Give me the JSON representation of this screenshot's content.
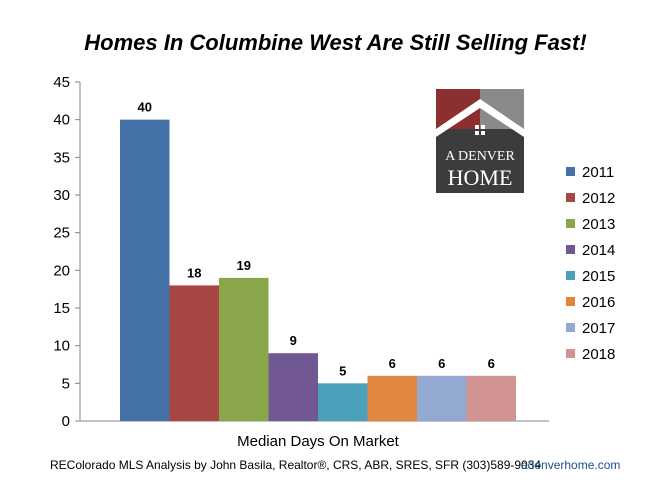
{
  "chart_data": {
    "type": "bar",
    "title": "Homes In Columbine West Are Still Selling Fast!",
    "xlabel": "Median Days On Market",
    "ylabel": "",
    "ylim": [
      0,
      45
    ],
    "yticks": [
      0,
      5,
      10,
      15,
      20,
      25,
      30,
      35,
      40,
      45
    ],
    "categories": [
      "Median Days On Market"
    ],
    "series": [
      {
        "name": "2011",
        "values": [
          40
        ],
        "color": "#4472a8"
      },
      {
        "name": "2012",
        "values": [
          18
        ],
        "color": "#a84644"
      },
      {
        "name": "2013",
        "values": [
          19
        ],
        "color": "#8aa64b"
      },
      {
        "name": "2014",
        "values": [
          9
        ],
        "color": "#715892"
      },
      {
        "name": "2015",
        "values": [
          5
        ],
        "color": "#4aa1b9"
      },
      {
        "name": "2016",
        "values": [
          6
        ],
        "color": "#e0863e"
      },
      {
        "name": "2017",
        "values": [
          6
        ],
        "color": "#93a9d2"
      },
      {
        "name": "2018",
        "values": [
          6
        ],
        "color": "#d29393"
      }
    ],
    "grid": false,
    "legend_position": "right"
  },
  "logo": {
    "line1": "A DENVER",
    "line2": "HOME",
    "colors": {
      "red": "#8b2f2f",
      "gray": "#8a8a8a",
      "dark": "#3c3c3c"
    }
  },
  "footer": {
    "source": "REColorado MLS  Analysis by John Basila, Realtor®, CRS, ABR, SRES, SFR  (303)589-9034",
    "website": "adenverhome.com"
  }
}
